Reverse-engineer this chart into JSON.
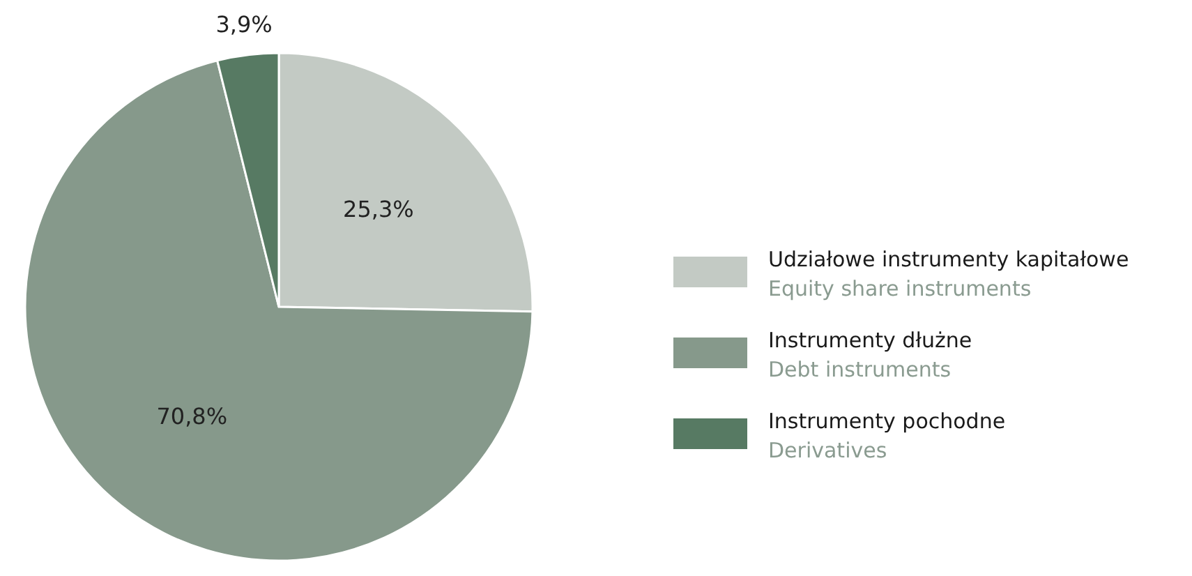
{
  "chart_data": {
    "type": "pie",
    "categories": [
      "Udziałowe instrumenty kapitałowe\nEquity share instruments",
      "Instrumenty dłużne\nDebt instruments",
      "Instrumenty pochodne\nDerivatives"
    ],
    "values": [
      25.3,
      70.8,
      3.9
    ],
    "value_labels": [
      "25,3%",
      "70,8%",
      "3,9%"
    ],
    "colors": [
      "#c3cac4",
      "#86998b",
      "#577a63"
    ],
    "legend": "right"
  }
}
